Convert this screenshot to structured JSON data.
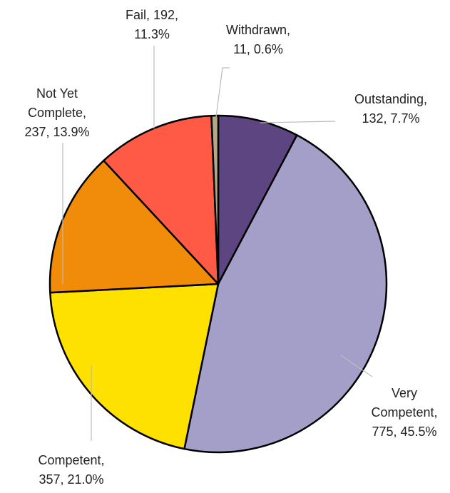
{
  "chart_data": {
    "type": "pie",
    "values": [
      132,
      775,
      357,
      237,
      192,
      11
    ],
    "data_labels": [
      [
        "Outstanding,",
        "132, 7.7%"
      ],
      [
        "Very",
        "Competent,",
        "775, 45.5%"
      ],
      [
        "Competent,",
        "357, 21.0%"
      ],
      [
        "Not Yet",
        "Complete,",
        "237, 13.9%"
      ],
      [
        "Fail, 192,",
        "11.3%"
      ],
      [
        "Withdrawn,",
        "11, 0.6%"
      ]
    ],
    "colors": [
      "#5c4580",
      "#a49fc8",
      "#ffe100",
      "#f08c0a",
      "#ff5a46",
      "#b5a88a"
    ]
  }
}
